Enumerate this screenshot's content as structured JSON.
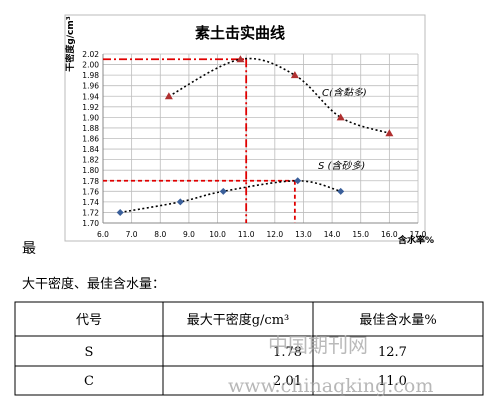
{
  "chart_data": {
    "type": "line",
    "title": "素土击实曲线",
    "y_label": "干密度g/cm³",
    "x_label": "含水率%",
    "xlim": [
      6,
      17
    ],
    "xticks": [
      {
        "value": 6,
        "label": "6.0"
      },
      {
        "value": 7,
        "label": "7.0"
      },
      {
        "value": 8,
        "label": "8.0"
      },
      {
        "value": 9,
        "label": "9.0"
      },
      {
        "value": 10,
        "label": "10.0"
      },
      {
        "value": 11,
        "label": "11.0"
      },
      {
        "value": 12,
        "label": "12.0"
      },
      {
        "value": 13,
        "label": "13.0"
      },
      {
        "value": 14,
        "label": "14.0"
      },
      {
        "value": 15,
        "label": "15.0"
      },
      {
        "value": 16,
        "label": "16.0"
      },
      {
        "value": 17,
        "label": "17.0"
      }
    ],
    "ylim": [
      1.7,
      2.02
    ],
    "yticks": [
      {
        "value": 1.7,
        "label": "1.70"
      },
      1.72,
      1.74,
      1.76,
      1.78,
      {
        "value": 1.8,
        "label": "1.80"
      },
      1.82,
      1.84,
      1.86,
      1.88,
      {
        "value": 1.9,
        "label": "1.90"
      },
      1.92,
      1.94,
      1.96,
      1.98,
      {
        "value": 2.0,
        "label": "2.00"
      },
      2.02
    ],
    "grid": true,
    "series": [
      {
        "name": "C(含黏多)",
        "color": "#b03030",
        "marker": "triangle",
        "x": [
          8.3,
          10.8,
          12.7,
          14.3,
          16.0
        ],
        "values": [
          1.94,
          2.01,
          1.98,
          1.9,
          1.87
        ]
      },
      {
        "name": "S (含砂多)",
        "color": "#3a5f9a",
        "marker": "diamond",
        "x": [
          6.6,
          8.7,
          10.2,
          12.8,
          14.3
        ],
        "values": [
          1.72,
          1.74,
          1.76,
          1.78,
          1.76
        ]
      }
    ],
    "reference_lines": [
      {
        "x": 11.0,
        "y": 2.01,
        "color": "#e00000",
        "dash": "8 3 2 3"
      },
      {
        "x": 12.7,
        "y": 1.78,
        "color": "#e00000",
        "dash": "4 3"
      }
    ]
  },
  "text": {
    "fragment": "最",
    "caption": "大干密度、最佳含水量："
  },
  "table": {
    "header": [
      "代号",
      "最大干密度g/cm³",
      "最佳含水量%"
    ],
    "rows": [
      [
        "S",
        "1.78",
        "12.7"
      ],
      [
        "C",
        "2.01",
        "11.0"
      ]
    ]
  },
  "watermark": {
    "cn": "中国期刊网",
    "url": "www.chinaqking.com"
  }
}
